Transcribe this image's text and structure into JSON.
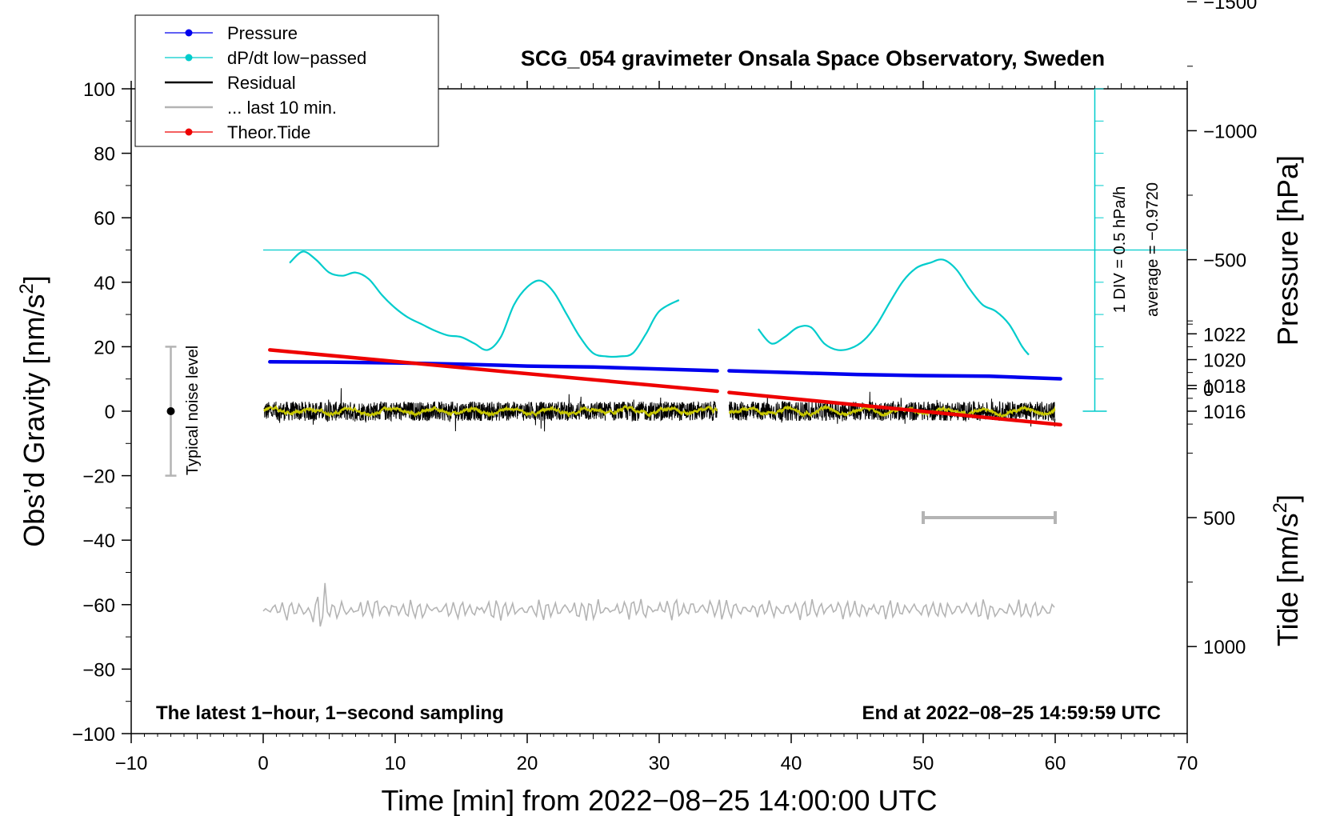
{
  "chart_data": {
    "type": "line",
    "title": "SCG_054 gravimeter Onsala Space Observatory, Sweden",
    "xlabel": "Time [min] from 2022−08−25 14:00:00 UTC",
    "ylabel_pre": "Obs’d Gravity [nm/s",
    "ylabel_sup": "2",
    "ylabel_post": "]",
    "right_top_label": "Pressure [hPa]",
    "right_bottom_label_pre": "Tide [nm/s",
    "right_bottom_label_sup": "2",
    "right_bottom_label_post": "]",
    "xlim": [
      -10,
      70
    ],
    "ylim": [
      -100,
      100
    ],
    "x_ticks": [
      "−10",
      "0",
      "10",
      "20",
      "30",
      "40",
      "50",
      "60",
      "70"
    ],
    "y_ticks": [
      "−100",
      "−80",
      "−60",
      "−40",
      "−20",
      "0",
      "20",
      "40",
      "60",
      "80",
      "100"
    ],
    "pressure_axis": {
      "range_hPa": [
        1014,
        1024
      ],
      "ticks": [
        "1016",
        "1018",
        "1020",
        "1022"
      ]
    },
    "tide_axis": {
      "range": [
        -1500,
        1000
      ],
      "ticks": [
        "−1500",
        "−1000",
        "−500",
        "0",
        "500",
        "1000"
      ]
    },
    "legend": {
      "placement": "top-left",
      "entries": [
        {
          "label": "Pressure",
          "color": "#0000ee",
          "marker": true
        },
        {
          "label": "dP/dt low−passed",
          "color": "#00cccc",
          "marker": true
        },
        {
          "label": "Residual",
          "color": "#000000",
          "marker": false
        },
        {
          "label": "... last 10 min.",
          "color": "#b4b4b4",
          "marker": false
        },
        {
          "label": "Theor.Tide",
          "color": "#ee0000",
          "marker": true
        }
      ]
    },
    "annotations": {
      "bottom_left": "The latest 1−hour, 1−second sampling",
      "bottom_right": "End at 2022−08−25 14:59:59 UTC",
      "noise": "Typical noise level",
      "dpdt_scale": "1 DIV = 0.5 hPa/h",
      "dpdt_average": "average = −0.9720"
    },
    "noise_bar": {
      "x": -7,
      "center": 0,
      "half_range": 20
    },
    "last10_bar": {
      "x_start": 50,
      "x_end": 60,
      "y": -33
    },
    "dpdt_axis": {
      "x": 63,
      "y_bottom": 0,
      "y_top": 100,
      "zero_line_y": 50,
      "divisions": 20
    },
    "gap": [
      34.4,
      35.3
    ],
    "colors": {
      "pressure": "#0000ee",
      "dpdt": "#00cccc",
      "residual": "#000000",
      "smooth": "#c8c800",
      "last10": "#b4b4b4",
      "tide": "#ee0000",
      "axis": "#000000",
      "noise": "#b4b4b4"
    },
    "series": [
      {
        "name": "Pressure",
        "unit": "hPa",
        "x": [
          0.5,
          5,
          10,
          15,
          20,
          25,
          30,
          34.4,
          35.3,
          40,
          45,
          50,
          55,
          60.4
        ],
        "values": [
          1019.83,
          1019.81,
          1019.75,
          1019.65,
          1019.5,
          1019.43,
          1019.27,
          1019.13,
          1019.13,
          1018.99,
          1018.85,
          1018.76,
          1018.72,
          1018.51
        ]
      },
      {
        "name": "dP/dt low-passed",
        "unit": "plot",
        "x": [
          2,
          3,
          4,
          5,
          6,
          7,
          8,
          9,
          10,
          11,
          12,
          13,
          14,
          15,
          16,
          17,
          18,
          19,
          20,
          21,
          22,
          23,
          24,
          25,
          26,
          27,
          28,
          29,
          30,
          31.5
        ],
        "values": [
          46,
          49.5,
          47,
          43,
          42,
          43,
          41,
          36,
          32,
          29,
          27,
          25,
          23.5,
          23,
          21,
          19,
          23,
          33,
          38.5,
          40.5,
          37,
          30,
          23,
          18,
          17,
          17,
          18,
          24,
          31,
          34.5
        ]
      },
      {
        "name": "dP/dt low-passed (after gap)",
        "unit": "plot",
        "x": [
          37.5,
          38.5,
          39.5,
          40.5,
          41.5,
          42.5,
          43.5,
          44.5,
          45.5,
          46.5,
          47.5,
          48.5,
          49.5,
          50.5,
          51.5,
          52.5,
          53.5,
          54.5,
          55.5,
          56.5,
          57.5,
          58
        ],
        "values": [
          25.5,
          21,
          23,
          26,
          26,
          21,
          19,
          19.5,
          22,
          27,
          34,
          40.5,
          44.5,
          46,
          47,
          44,
          38,
          33,
          31,
          27,
          20,
          17.5
        ]
      },
      {
        "name": "Residual",
        "unit": "nm/s2",
        "x_range": [
          0,
          60
        ],
        "level": 0,
        "amplitude": 3
      },
      {
        "name": "... last 10 min.",
        "unit": "plot",
        "x_range": [
          0,
          60
        ],
        "level": -61.5,
        "amplitude": 2.5
      },
      {
        "name": "Theor.Tide",
        "unit": "nm/s2 (tide axis)",
        "x": [
          0.5,
          34.4,
          35.3,
          60.4
        ],
        "values": [
          -150,
          10,
          15,
          140
        ]
      }
    ]
  }
}
